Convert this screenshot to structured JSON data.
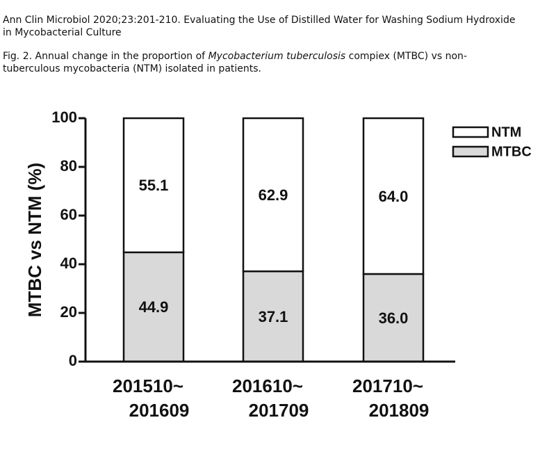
{
  "citation": "Ann Clin Microbiol 2020;23:201-210. Evaluating the Use of Distilled Water for Washing Sodium Hydroxide in Mycobacterial Culture",
  "caption": [
    "Fig. 2. Annual change in the proportion of ",
    "Mycobacterium tuberculosis",
    " compiex (MTBC) vs non-tuberculous mycobacteria (NTM) isolated in patients."
  ],
  "chart_data": {
    "type": "stacked_bar",
    "ylabel": "MTBC vs NTM (%)",
    "categories": [
      [
        "201510~",
        "201609"
      ],
      [
        "201610~",
        "201709"
      ],
      [
        "201710~",
        "201809"
      ]
    ],
    "series": [
      {
        "name": "MTBC",
        "color": "#d9d9d9",
        "values": [
          44.9,
          37.1,
          36.0
        ],
        "value_labels": [
          "44.9",
          "37.1",
          "36.0"
        ]
      },
      {
        "name": "NTM",
        "color": "#ffffff",
        "values": [
          55.1,
          62.9,
          64.0
        ],
        "value_labels": [
          "55.1",
          "62.9",
          "64.0"
        ]
      }
    ],
    "ylim": [
      0,
      100
    ],
    "yticks": [
      0,
      20,
      40,
      60,
      80,
      100
    ],
    "legend": "upper right"
  }
}
